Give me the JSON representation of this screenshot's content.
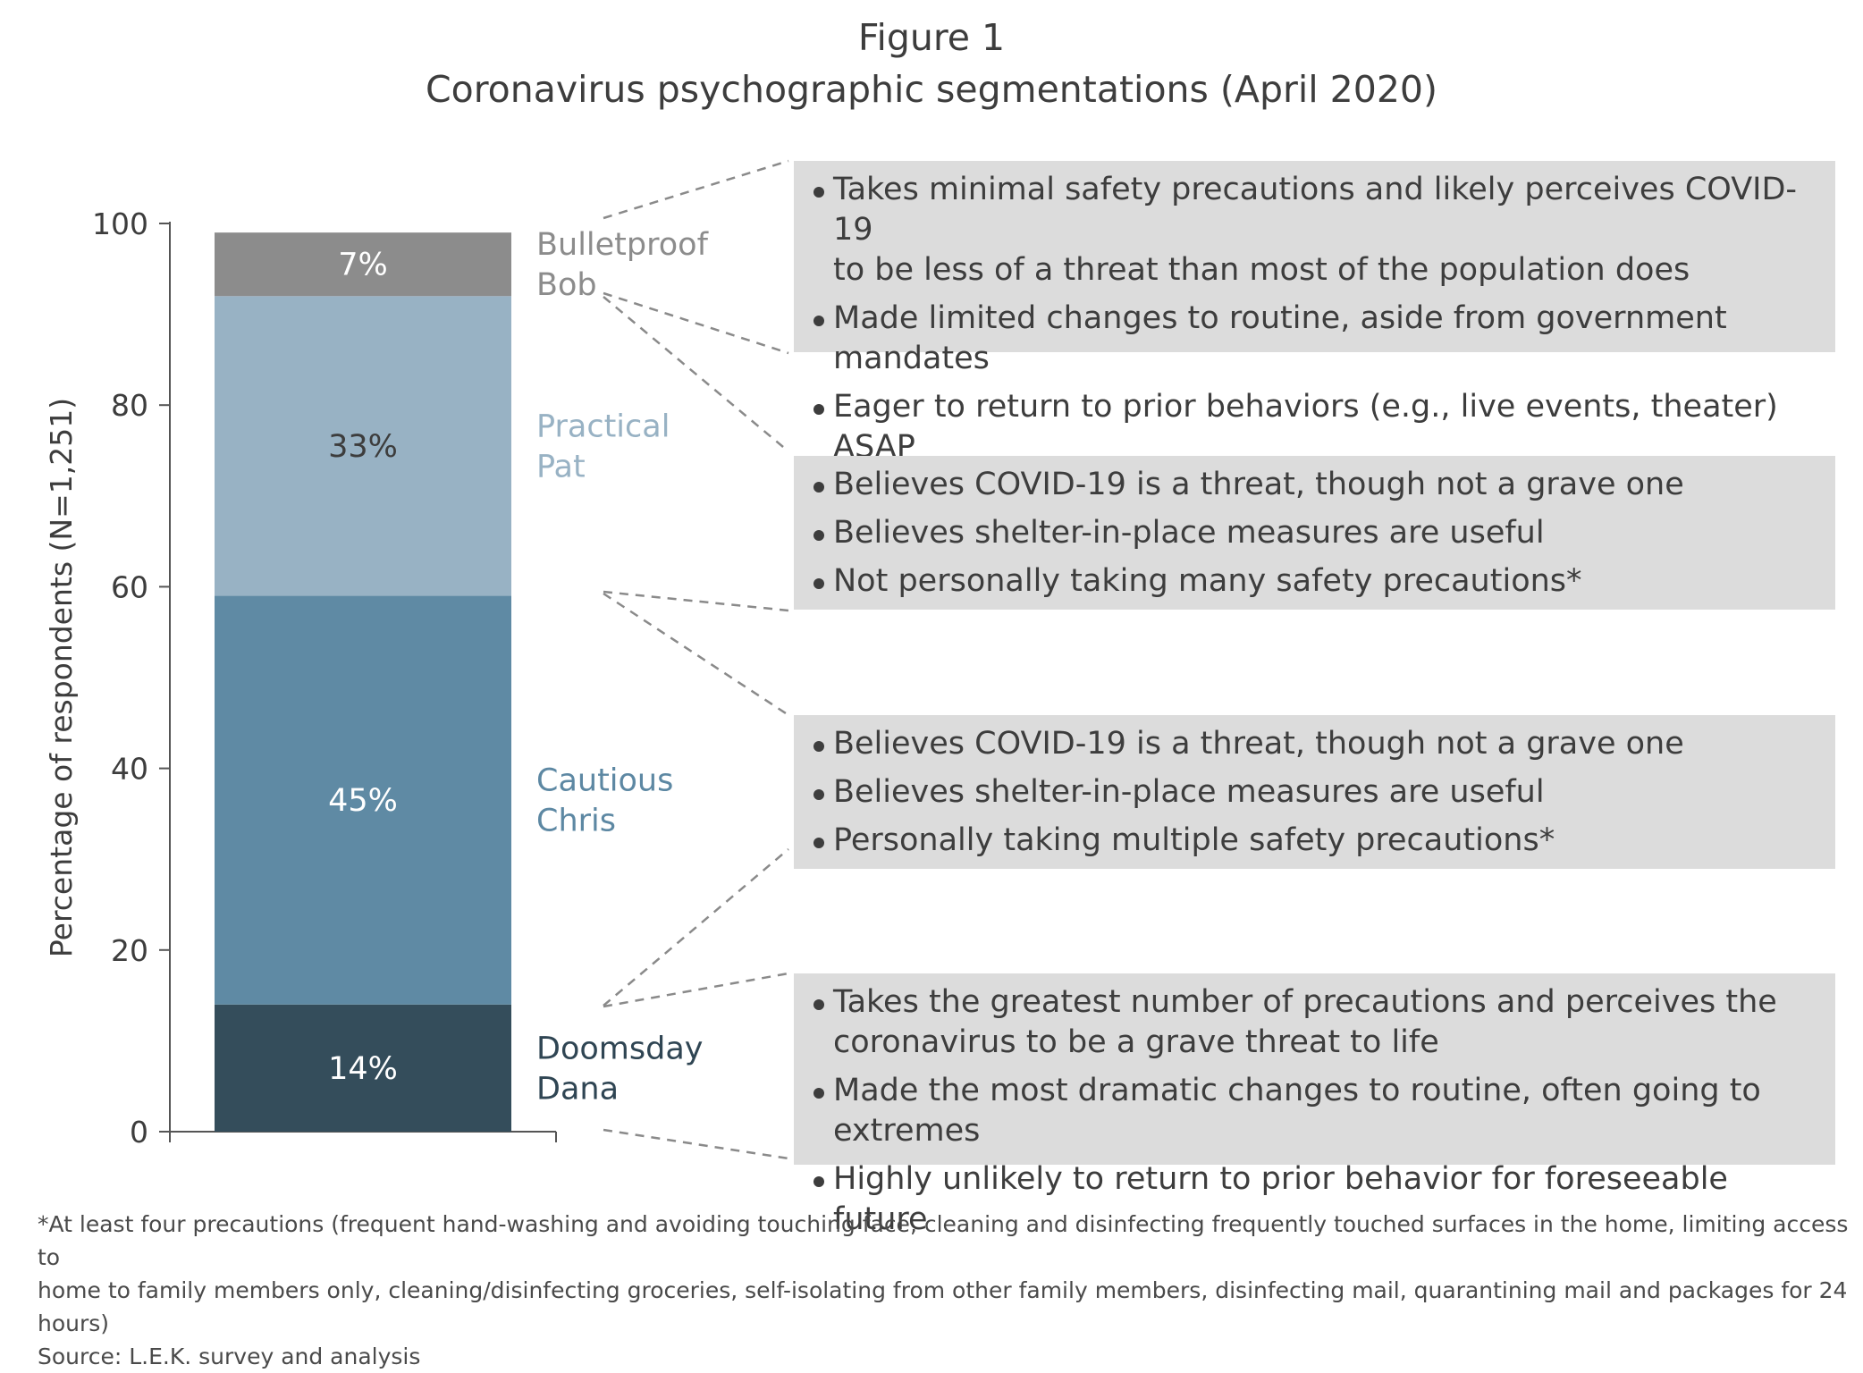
{
  "figure_label": "Figure 1",
  "figure_title": "Coronavirus psychographic segmentations (April 2020)",
  "chart_data": {
    "type": "bar",
    "stacked": true,
    "ylabel": "Percentage of respondents (N=1,251)",
    "ylim": [
      0,
      100
    ],
    "yticks": [
      0,
      20,
      40,
      60,
      80,
      100
    ],
    "segments": [
      {
        "name": "Doomsday Dana",
        "value": 14,
        "label": "14%",
        "color": "#344d5b",
        "text_color": "#ffffff",
        "name_color": "#2f4553"
      },
      {
        "name": "Cautious Chris",
        "value": 45,
        "label": "45%",
        "color": "#5f8aa4",
        "text_color": "#ffffff",
        "name_color": "#5d88a3"
      },
      {
        "name": "Practical Pat",
        "value": 33,
        "label": "33%",
        "color": "#98b2c4",
        "text_color": "#3d3d3d",
        "name_color": "#98b2c4"
      },
      {
        "name": "Bulletproof Bob",
        "value": 7,
        "label": "7%",
        "color": "#8c8c8c",
        "text_color": "#ffffff",
        "name_color": "#8c8c8c"
      }
    ],
    "segment_names": [
      [
        "Doomsday",
        "Dana"
      ],
      [
        "Cautious",
        "Chris"
      ],
      [
        "Practical",
        "Pat"
      ],
      [
        "Bulletproof",
        "Bob"
      ]
    ]
  },
  "descriptions": {
    "bob": [
      "Takes minimal safety precautions and likely perceives COVID-19",
      "to be less of a threat than most of the population does",
      "Made limited changes to routine, aside from government mandates",
      "Eager to return to prior behaviors (e.g., live events, theater) ASAP"
    ],
    "pat": [
      "Believes COVID-19 is a threat, though not a grave one",
      "Believes shelter-in-place measures are useful",
      "Not personally taking many safety precautions*"
    ],
    "chris": [
      "Believes COVID-19 is a threat, though not a grave one",
      "Believes shelter-in-place measures are useful",
      "Personally taking multiple safety precautions*"
    ],
    "dana": [
      "Takes the greatest number of precautions and perceives the",
      "coronavirus to be a grave threat to life",
      "Made the most dramatic changes to routine, often going to extremes",
      "Highly unlikely to return to prior behavior for foreseeable future"
    ]
  },
  "footnote": {
    "line1": "*At least four precautions (frequent hand-washing and avoiding touching face, cleaning and disinfecting frequently touched surfaces in the home, limiting access to",
    "line2": "home to family members only, cleaning/disinfecting groceries, self-isolating from other family members, disinfecting mail, quarantining mail and packages for 24 hours)",
    "source": "Source: L.E.K. survey and analysis"
  },
  "colors": {
    "box_bg": "#dcdcdc",
    "axis": "#555555",
    "connector": "#8a8a8a"
  }
}
